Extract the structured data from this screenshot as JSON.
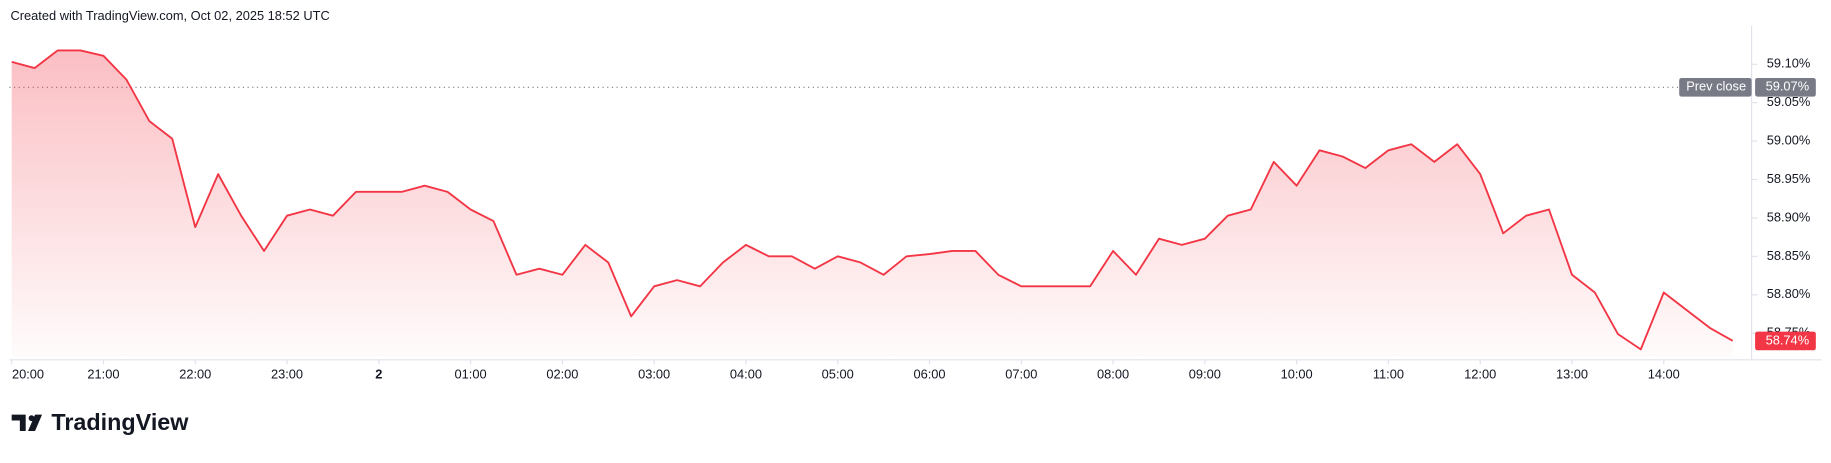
{
  "header": "Created with TradingView.com, Oct 02, 2025 18:52 UTC",
  "brand": "TradingView",
  "chart_data": {
    "type": "area",
    "color": "#f23645",
    "x": [
      "20:00",
      "20:15",
      "20:30",
      "20:45",
      "21:00",
      "21:15",
      "21:30",
      "21:45",
      "22:00",
      "22:15",
      "22:30",
      "22:45",
      "23:00",
      "23:15",
      "23:30",
      "23:45",
      "00:00",
      "00:15",
      "00:30",
      "00:45",
      "01:00",
      "01:15",
      "01:30",
      "01:45",
      "02:00",
      "02:15",
      "02:30",
      "02:45",
      "03:00",
      "03:15",
      "03:30",
      "03:45",
      "04:00",
      "04:15",
      "04:30",
      "04:45",
      "05:00",
      "05:15",
      "05:30",
      "05:45",
      "06:00",
      "06:15",
      "06:30",
      "06:45",
      "07:00",
      "07:15",
      "07:30",
      "07:45",
      "08:00",
      "08:15",
      "08:30",
      "08:45",
      "09:00",
      "09:15",
      "09:30",
      "09:45",
      "10:00",
      "10:15",
      "10:30",
      "10:45",
      "11:00",
      "11:15",
      "11:30",
      "11:45",
      "12:00",
      "12:15",
      "12:30",
      "12:45",
      "13:00",
      "13:15",
      "13:30",
      "13:45",
      "14:00",
      "14:15",
      "14:30",
      "14:45"
    ],
    "values": [
      59.103,
      59.095,
      59.118,
      59.118,
      59.111,
      59.08,
      59.026,
      59.003,
      58.888,
      58.957,
      58.903,
      58.857,
      58.903,
      58.911,
      58.903,
      58.934,
      58.934,
      58.934,
      58.942,
      58.934,
      58.911,
      58.896,
      58.826,
      58.834,
      58.826,
      58.865,
      58.842,
      58.772,
      58.811,
      58.819,
      58.811,
      58.842,
      58.865,
      58.85,
      58.85,
      58.834,
      58.85,
      58.842,
      58.826,
      58.85,
      58.853,
      58.857,
      58.857,
      58.826,
      58.811,
      58.811,
      58.811,
      58.811,
      58.857,
      58.826,
      58.873,
      58.865,
      58.873,
      58.903,
      58.911,
      58.973,
      58.942,
      58.988,
      58.98,
      58.965,
      58.988,
      58.996,
      58.973,
      58.996,
      58.957,
      58.88,
      58.903,
      58.911,
      58.826,
      58.803,
      58.749,
      58.729,
      58.803,
      58.78,
      58.757,
      58.74
    ],
    "last_label": "58.74%",
    "prev_close": {
      "label": "Prev close",
      "value": 59.07,
      "value_label": "59.07%"
    },
    "ylim": [
      58.72,
      59.15
    ],
    "yticks": [
      {
        "value": 58.75,
        "label": "58.75%"
      },
      {
        "value": 58.8,
        "label": "58.80%"
      },
      {
        "value": 58.85,
        "label": "58.85%"
      },
      {
        "value": 58.9,
        "label": "58.90%"
      },
      {
        "value": 58.95,
        "label": "58.95%"
      },
      {
        "value": 59.0,
        "label": "59.00%"
      },
      {
        "value": 59.05,
        "label": "59.05%"
      },
      {
        "value": 59.1,
        "label": "59.10%"
      }
    ],
    "xticks": [
      "20:00",
      "21:00",
      "22:00",
      "23:00",
      {
        "value": "00:00",
        "label": "2"
      },
      "01:00",
      "02:00",
      "03:00",
      "04:00",
      "05:00",
      "06:00",
      "07:00",
      "08:00",
      "09:00",
      "10:00",
      "11:00",
      "12:00",
      "13:00",
      "14:00"
    ]
  }
}
